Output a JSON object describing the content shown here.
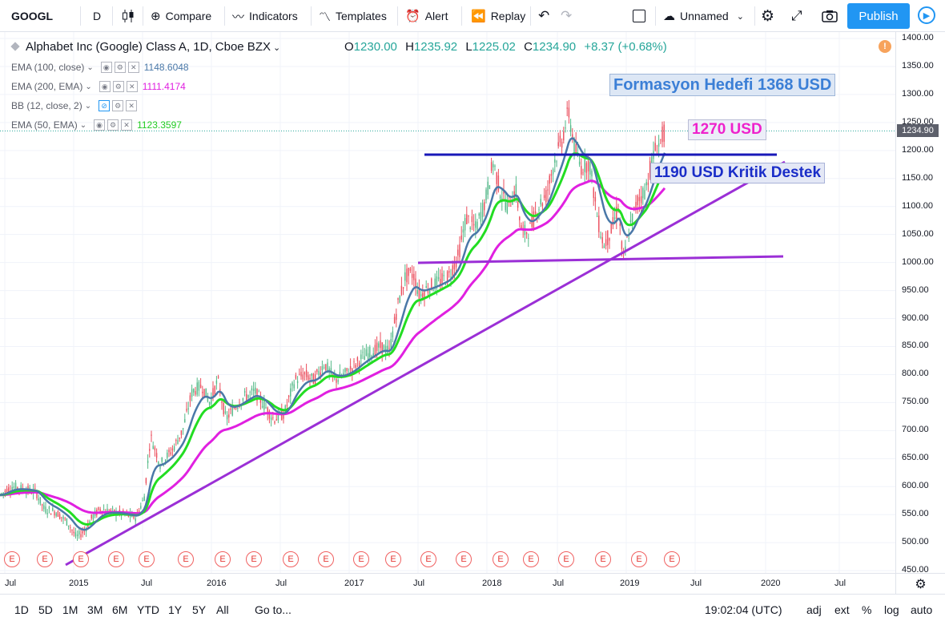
{
  "toolbar": {
    "symbol": "GOOGL",
    "interval": "D",
    "compare": "Compare",
    "indicators": "Indicators",
    "templates": "Templates",
    "alert": "Alert",
    "replay": "Replay",
    "layout_name": "Unnamed",
    "publish": "Publish"
  },
  "legend": {
    "title": "Alphabet Inc (Google) Class A, 1D, Cboe BZX",
    "open_label": "O",
    "open": "1230.00",
    "high_label": "H",
    "high": "1235.92",
    "low_label": "L",
    "low": "1225.02",
    "close_label": "C",
    "close": "1234.90",
    "change": "+8.37 (+0.68%)",
    "indicators": [
      {
        "label": "EMA (100, close)",
        "value": "1148.6048",
        "color": "#4a78a8"
      },
      {
        "label": "EMA (200, EMA)",
        "value": "1111.4174",
        "color": "#e020e0"
      },
      {
        "label": "BB (12, close, 2)",
        "value": "",
        "color": "#2196f3"
      },
      {
        "label": "EMA (50, EMA)",
        "value": "1123.3597",
        "color": "#22dd22"
      }
    ]
  },
  "annotations": {
    "target": "Formasyon Hedefi 1368 USD",
    "resistance": "1270 USD",
    "support": "1190 USD Kritik Destek"
  },
  "price_axis": {
    "labels": [
      "1400.00",
      "1350.00",
      "1300.00",
      "1250.00",
      "1200.00",
      "1150.00",
      "1100.00",
      "1050.00",
      "1000.00",
      "950.00",
      "900.00",
      "850.00",
      "800.00",
      "750.00",
      "700.00",
      "650.00",
      "600.00",
      "550.00",
      "500.00",
      "450.00"
    ],
    "current": "1234.90"
  },
  "time_axis": {
    "labels": [
      "Jul",
      "2015",
      "Jul",
      "2016",
      "Jul",
      "2017",
      "Jul",
      "2018",
      "Jul",
      "2019",
      "Jul",
      "2020",
      "Jul"
    ]
  },
  "events": {
    "marker": "E"
  },
  "bottom_bar": {
    "ranges": [
      "1D",
      "5D",
      "1M",
      "3M",
      "6M",
      "YTD",
      "1Y",
      "5Y",
      "All"
    ],
    "goto": "Go to...",
    "time": "19:02:04 (UTC)",
    "adj": "adj",
    "ext": "ext",
    "pct": "%",
    "log": "log",
    "auto": "auto"
  },
  "colors": {
    "ema100": "#4a78a8",
    "ema200": "#e020e0",
    "ema50": "#22dd22",
    "trendline": "#9b2fd6",
    "resistance_line": "#1818b8",
    "accent": "#2196f3"
  }
}
